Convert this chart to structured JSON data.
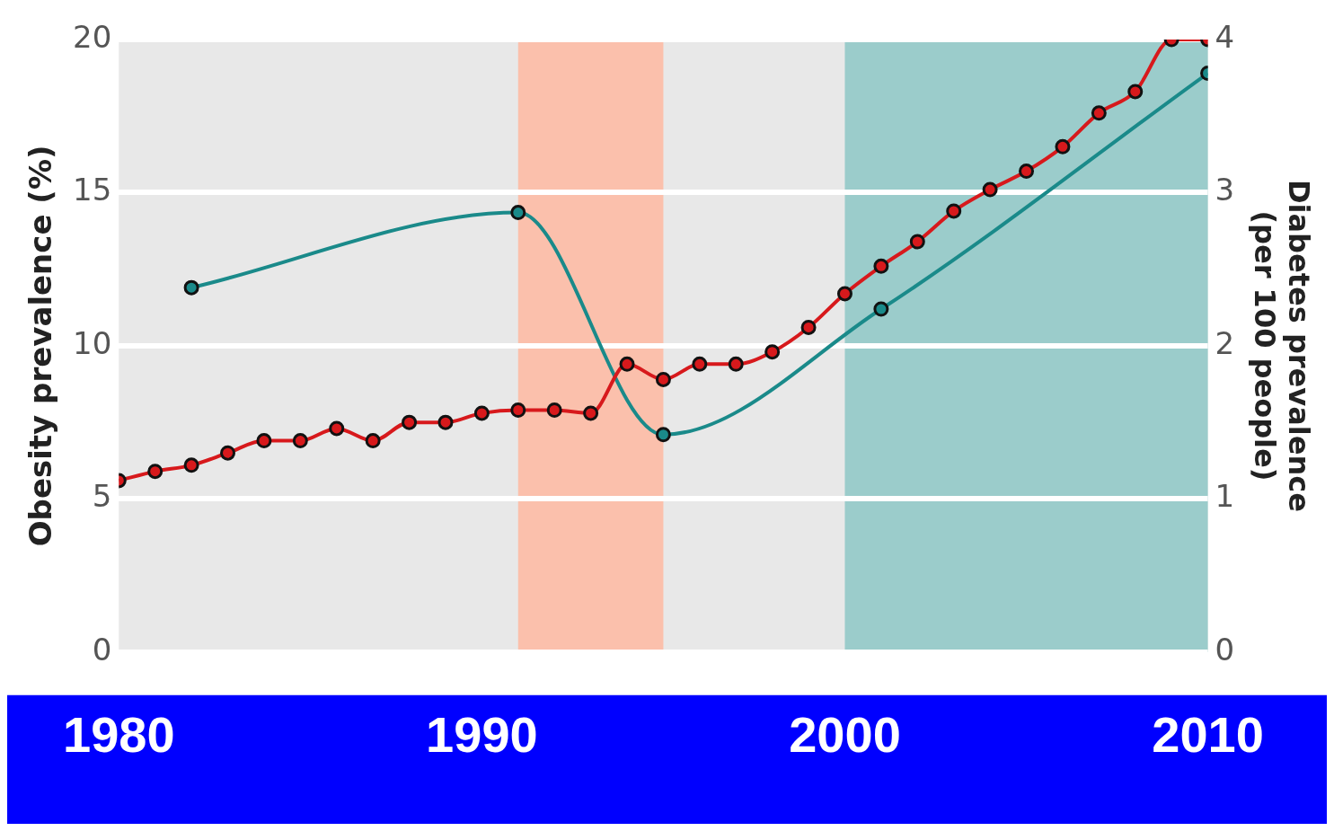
{
  "chart_data": {
    "type": "line",
    "ylabel": "Obesity prevalence (%)",
    "y2label": "Diabetes prevalence\n(per 100 people)",
    "xlim": [
      1980,
      2010
    ],
    "xticks": [
      1980,
      1990,
      2000,
      2010
    ],
    "ylim": [
      0,
      20
    ],
    "yticks": [
      0,
      5,
      10,
      15,
      20
    ],
    "y2lim": [
      0,
      4
    ],
    "y2ticks": [
      0,
      1,
      2,
      3,
      4
    ],
    "grid": "y",
    "legend": false,
    "marker": "circle",
    "line_style": "solid",
    "bands": [
      {
        "axis": "x",
        "from": 1991,
        "to": 1995,
        "color": "#fbc0ac"
      },
      {
        "axis": "x",
        "from": 2000,
        "to": 2010,
        "color": "#9bcccb"
      }
    ],
    "series": [
      {
        "color": "#d7191c",
        "x": [
          1980,
          1981,
          1982,
          1983,
          1984,
          1985,
          1986,
          1987,
          1988,
          1989,
          1990,
          1991,
          1992,
          1993,
          1994,
          1995,
          1996,
          1997,
          1998,
          1999,
          2000,
          2001,
          2002,
          2003,
          2004,
          2005,
          2006,
          2007,
          2008,
          2009,
          2010
        ],
        "values": [
          5.6,
          5.9,
          6.1,
          6.5,
          6.9,
          6.9,
          7.3,
          6.9,
          7.5,
          7.5,
          7.8,
          7.9,
          7.9,
          7.8,
          9.4,
          8.9,
          9.4,
          9.4,
          9.8,
          10.6,
          11.7,
          12.6,
          13.4,
          14.4,
          15.1,
          15.7,
          16.5,
          17.6,
          18.3,
          20,
          20
        ]
      },
      {
        "color": "#1a8a8a",
        "axis": "y2",
        "x": [
          1982,
          1991,
          1995,
          2001,
          2010
        ],
        "values": [
          2.38,
          2.87,
          1.42,
          2.24,
          3.78
        ]
      }
    ]
  }
}
